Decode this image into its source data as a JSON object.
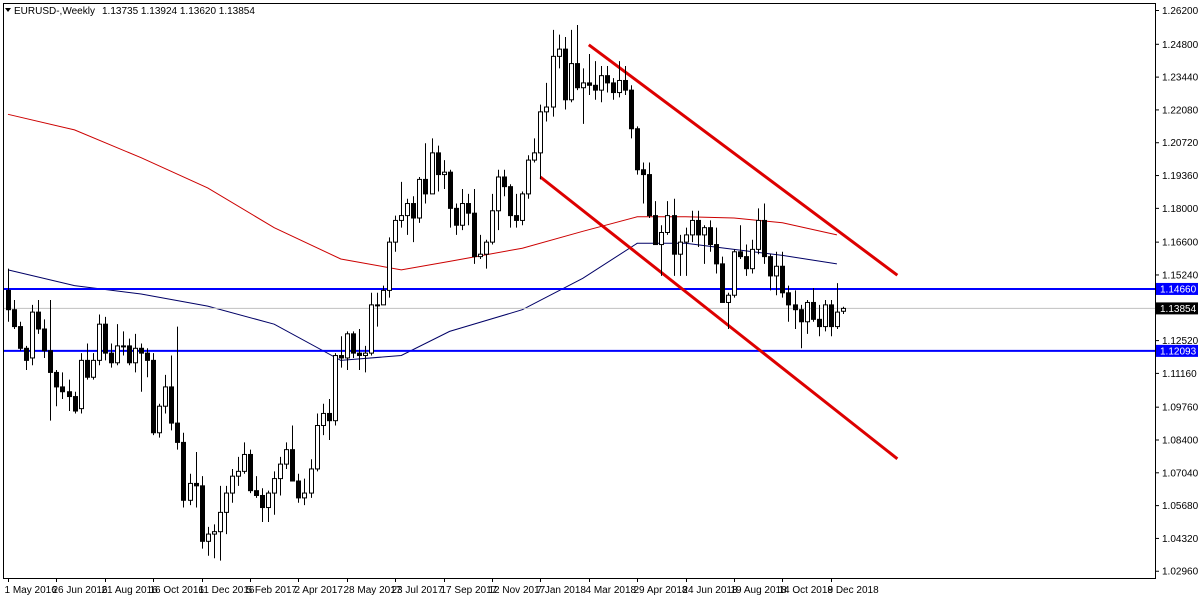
{
  "header": {
    "symbol": "EURUSD-,Weekly",
    "ohlc": "1.13735 1.13924 1.13620 1.13854"
  },
  "chart_data": {
    "type": "candlestick",
    "timeframe": "Weekly",
    "y_range": [
      1.0268,
      1.2647
    ],
    "y_ticks": [
      "1.26200",
      "1.24800",
      "1.23440",
      "1.22080",
      "1.20720",
      "1.19360",
      "1.18000",
      "1.16600",
      "1.15240",
      "1.13880",
      "1.12520",
      "1.11160",
      "1.09760",
      "1.08400",
      "1.07040",
      "1.05680",
      "1.04320",
      "1.02960"
    ],
    "x_tick_labels": [
      "1 May 2016",
      "26 Jun 2016",
      "21 Aug 2016",
      "16 Oct 2016",
      "11 Dec 2016",
      "5 Feb 2017",
      "2 Apr 2017",
      "28 May 2017",
      "23 Jul 2017",
      "17 Sep 2017",
      "12 Nov 2017",
      "7 Jan 2018",
      "4 Mar 2018",
      "29 Apr 2018",
      "24 Jun 2018",
      "19 Aug 2018",
      "14 Oct 2018",
      "9 Dec 2018"
    ],
    "current_price": "1.13854",
    "horizontal_levels": [
      {
        "value": "1.14660",
        "color": "#0000ff"
      },
      {
        "value": "1.12093",
        "color": "#0000ff"
      }
    ],
    "channel_lines": [
      {
        "from": [
          "2018-03-04",
          1.2478
        ],
        "to": [
          "2019-02-24",
          1.1523
        ],
        "color": "#dd0000"
      },
      {
        "from": [
          "2018-01-07",
          1.193
        ],
        "to": [
          "2019-02-24",
          1.0762
        ],
        "color": "#dd0000"
      }
    ],
    "moving_averages": [
      {
        "color": "#cc0000",
        "points": [
          [
            "2016-05-01",
            1.219
          ],
          [
            "2016-07-17",
            1.2125
          ],
          [
            "2016-10-02",
            1.201
          ],
          [
            "2016-12-18",
            1.1885
          ],
          [
            "2017-03-05",
            1.172
          ],
          [
            "2017-05-21",
            1.159
          ],
          [
            "2017-07-30",
            1.1545
          ],
          [
            "2017-09-24",
            1.158
          ],
          [
            "2017-12-17",
            1.1635
          ],
          [
            "2018-02-25",
            1.1705
          ],
          [
            "2018-04-29",
            1.1765
          ],
          [
            "2018-06-24",
            1.1765
          ],
          [
            "2018-08-19",
            1.176
          ],
          [
            "2018-10-14",
            1.174
          ],
          [
            "2018-12-16",
            1.169
          ]
        ]
      },
      {
        "color": "#000066",
        "points": [
          [
            "2016-05-01",
            1.1545
          ],
          [
            "2016-07-17",
            1.148
          ],
          [
            "2016-10-02",
            1.1445
          ],
          [
            "2016-12-18",
            1.1395
          ],
          [
            "2017-03-05",
            1.132
          ],
          [
            "2017-05-21",
            1.117
          ],
          [
            "2017-07-30",
            1.119
          ],
          [
            "2017-09-24",
            1.129
          ],
          [
            "2017-12-17",
            1.138
          ],
          [
            "2018-02-25",
            1.151
          ],
          [
            "2018-04-29",
            1.1655
          ],
          [
            "2018-06-24",
            1.1655
          ],
          [
            "2018-08-19",
            1.163
          ],
          [
            "2018-10-14",
            1.1605
          ],
          [
            "2018-12-16",
            1.157
          ]
        ]
      }
    ],
    "candles": [
      [
        "2016-05-01",
        1.146,
        1.155,
        1.133,
        1.138
      ],
      [
        "2016-05-08",
        1.138,
        1.142,
        1.13,
        1.131
      ],
      [
        "2016-05-15",
        1.131,
        1.133,
        1.121,
        1.122
      ],
      [
        "2016-05-22",
        1.122,
        1.123,
        1.113,
        1.117
      ],
      [
        "2016-05-29",
        1.118,
        1.14,
        1.115,
        1.137
      ],
      [
        "2016-06-05",
        1.137,
        1.142,
        1.128,
        1.13
      ],
      [
        "2016-06-12",
        1.13,
        1.134,
        1.118,
        1.121
      ],
      [
        "2016-06-19",
        1.121,
        1.142,
        1.092,
        1.112
      ],
      [
        "2016-06-26",
        1.112,
        1.113,
        1.098,
        1.106
      ],
      [
        "2016-07-03",
        1.106,
        1.112,
        1.101,
        1.104
      ],
      [
        "2016-07-10",
        1.104,
        1.109,
        1.096,
        1.102
      ],
      [
        "2016-07-17",
        1.102,
        1.104,
        1.095,
        1.096
      ],
      [
        "2016-07-24",
        1.097,
        1.12,
        1.095,
        1.117
      ],
      [
        "2016-07-31",
        1.117,
        1.124,
        1.109,
        1.11
      ],
      [
        "2016-08-07",
        1.11,
        1.12,
        1.109,
        1.117
      ],
      [
        "2016-08-14",
        1.117,
        1.136,
        1.115,
        1.132
      ],
      [
        "2016-08-21",
        1.132,
        1.135,
        1.117,
        1.12
      ],
      [
        "2016-08-28",
        1.12,
        1.124,
        1.114,
        1.116
      ],
      [
        "2016-09-04",
        1.116,
        1.132,
        1.115,
        1.123
      ],
      [
        "2016-09-11",
        1.123,
        1.129,
        1.119,
        1.123
      ],
      [
        "2016-09-18",
        1.123,
        1.126,
        1.115,
        1.116
      ],
      [
        "2016-09-25",
        1.116,
        1.128,
        1.112,
        1.122
      ],
      [
        "2016-10-02",
        1.122,
        1.124,
        1.104,
        1.12
      ],
      [
        "2016-10-09",
        1.12,
        1.122,
        1.11,
        1.117
      ],
      [
        "2016-10-16",
        1.117,
        1.12,
        1.086,
        1.087
      ],
      [
        "2016-10-23",
        1.087,
        1.099,
        1.085,
        1.098
      ],
      [
        "2016-10-30",
        1.098,
        1.111,
        1.095,
        1.106
      ],
      [
        "2016-11-06",
        1.106,
        1.119,
        1.088,
        1.091
      ],
      [
        "2016-11-13",
        1.091,
        1.131,
        1.08,
        1.083
      ],
      [
        "2016-11-20",
        1.083,
        1.087,
        1.056,
        1.059
      ],
      [
        "2016-11-27",
        1.059,
        1.07,
        1.057,
        1.066
      ],
      [
        "2016-12-04",
        1.066,
        1.079,
        1.056,
        1.065
      ],
      [
        "2016-12-11",
        1.065,
        1.069,
        1.039,
        1.042
      ],
      [
        "2016-12-18",
        1.042,
        1.048,
        1.036,
        1.045
      ],
      [
        "2016-12-25",
        1.045,
        1.049,
        1.035,
        1.046
      ],
      [
        "2017-01-01",
        1.046,
        1.065,
        1.034,
        1.054
      ],
      [
        "2017-01-08",
        1.054,
        1.065,
        1.045,
        1.062
      ],
      [
        "2017-01-15",
        1.062,
        1.072,
        1.058,
        1.069
      ],
      [
        "2017-01-22",
        1.069,
        1.077,
        1.065,
        1.071
      ],
      [
        "2017-01-29",
        1.071,
        1.083,
        1.07,
        1.078
      ],
      [
        "2017-02-05",
        1.078,
        1.08,
        1.062,
        1.063
      ],
      [
        "2017-02-12",
        1.063,
        1.069,
        1.06,
        1.061
      ],
      [
        "2017-02-19",
        1.061,
        1.064,
        1.05,
        1.056
      ],
      [
        "2017-02-26",
        1.056,
        1.063,
        1.05,
        1.062
      ],
      [
        "2017-03-05",
        1.062,
        1.071,
        1.053,
        1.068
      ],
      [
        "2017-03-12",
        1.068,
        1.077,
        1.061,
        1.074
      ],
      [
        "2017-03-19",
        1.074,
        1.083,
        1.072,
        1.08
      ],
      [
        "2017-03-26",
        1.08,
        1.09,
        1.067,
        1.067
      ],
      [
        "2017-04-02",
        1.067,
        1.07,
        1.058,
        1.06
      ],
      [
        "2017-04-09",
        1.06,
        1.068,
        1.057,
        1.062
      ],
      [
        "2017-04-16",
        1.062,
        1.076,
        1.06,
        1.072
      ],
      [
        "2017-04-23",
        1.072,
        1.095,
        1.071,
        1.09
      ],
      [
        "2017-04-30",
        1.09,
        1.099,
        1.086,
        1.095
      ],
      [
        "2017-05-07",
        1.095,
        1.101,
        1.084,
        1.092
      ],
      [
        "2017-05-14",
        1.092,
        1.12,
        1.09,
        1.119
      ],
      [
        "2017-05-21",
        1.119,
        1.127,
        1.114,
        1.118
      ],
      [
        "2017-05-28",
        1.118,
        1.129,
        1.113,
        1.128
      ],
      [
        "2017-06-04",
        1.128,
        1.129,
        1.118,
        1.12
      ],
      [
        "2017-06-11",
        1.12,
        1.13,
        1.113,
        1.119
      ],
      [
        "2017-06-18",
        1.119,
        1.123,
        1.112,
        1.12
      ],
      [
        "2017-06-25",
        1.12,
        1.145,
        1.119,
        1.14
      ],
      [
        "2017-07-02",
        1.14,
        1.145,
        1.131,
        1.14
      ],
      [
        "2017-07-09",
        1.14,
        1.148,
        1.14,
        1.146
      ],
      [
        "2017-07-16",
        1.146,
        1.168,
        1.143,
        1.166
      ],
      [
        "2017-07-23",
        1.166,
        1.177,
        1.162,
        1.175
      ],
      [
        "2017-07-30",
        1.175,
        1.191,
        1.172,
        1.177
      ],
      [
        "2017-08-06",
        1.177,
        1.184,
        1.169,
        1.182
      ],
      [
        "2017-08-13",
        1.182,
        1.185,
        1.166,
        1.176
      ],
      [
        "2017-08-20",
        1.176,
        1.193,
        1.174,
        1.192
      ],
      [
        "2017-08-27",
        1.192,
        1.207,
        1.182,
        1.186
      ],
      [
        "2017-09-03",
        1.186,
        1.209,
        1.186,
        1.203
      ],
      [
        "2017-09-10",
        1.203,
        1.206,
        1.187,
        1.194
      ],
      [
        "2017-09-17",
        1.194,
        1.2,
        1.188,
        1.195
      ],
      [
        "2017-09-24",
        1.195,
        1.196,
        1.172,
        1.18
      ],
      [
        "2017-10-01",
        1.18,
        1.182,
        1.169,
        1.173
      ],
      [
        "2017-10-08",
        1.173,
        1.188,
        1.171,
        1.182
      ],
      [
        "2017-10-15",
        1.182,
        1.186,
        1.173,
        1.178
      ],
      [
        "2017-10-22",
        1.178,
        1.188,
        1.157,
        1.16
      ],
      [
        "2017-10-29",
        1.16,
        1.169,
        1.159,
        1.161
      ],
      [
        "2017-11-05",
        1.161,
        1.167,
        1.155,
        1.166
      ],
      [
        "2017-11-12",
        1.166,
        1.186,
        1.165,
        1.179
      ],
      [
        "2017-11-19",
        1.179,
        1.196,
        1.171,
        1.193
      ],
      [
        "2017-11-26",
        1.193,
        1.196,
        1.185,
        1.189
      ],
      [
        "2017-12-03",
        1.189,
        1.19,
        1.172,
        1.177
      ],
      [
        "2017-12-10",
        1.177,
        1.186,
        1.172,
        1.175
      ],
      [
        "2017-12-17",
        1.175,
        1.187,
        1.173,
        1.186
      ],
      [
        "2017-12-24",
        1.186,
        1.202,
        1.184,
        1.2
      ],
      [
        "2017-12-31",
        1.2,
        1.209,
        1.199,
        1.203
      ],
      [
        "2018-01-07",
        1.203,
        1.223,
        1.192,
        1.22
      ],
      [
        "2018-01-14",
        1.22,
        1.232,
        1.216,
        1.222
      ],
      [
        "2018-01-21",
        1.222,
        1.254,
        1.218,
        1.243
      ],
      [
        "2018-01-28",
        1.243,
        1.252,
        1.238,
        1.246
      ],
      [
        "2018-02-04",
        1.246,
        1.251,
        1.221,
        1.225
      ],
      [
        "2018-02-11",
        1.225,
        1.254,
        1.224,
        1.24
      ],
      [
        "2018-02-18",
        1.24,
        1.256,
        1.229,
        1.23
      ],
      [
        "2018-02-25",
        1.23,
        1.238,
        1.215,
        1.232
      ],
      [
        "2018-03-04",
        1.232,
        1.244,
        1.227,
        1.231
      ],
      [
        "2018-03-11",
        1.231,
        1.241,
        1.225,
        1.229
      ],
      [
        "2018-03-18",
        1.229,
        1.239,
        1.224,
        1.235
      ],
      [
        "2018-03-25",
        1.235,
        1.239,
        1.228,
        1.232
      ],
      [
        "2018-04-01",
        1.232,
        1.234,
        1.225,
        1.228
      ],
      [
        "2018-04-08",
        1.228,
        1.241,
        1.226,
        1.233
      ],
      [
        "2018-04-15",
        1.233,
        1.239,
        1.227,
        1.229
      ],
      [
        "2018-04-22",
        1.229,
        1.231,
        1.209,
        1.213
      ],
      [
        "2018-04-29",
        1.213,
        1.214,
        1.194,
        1.196
      ],
      [
        "2018-05-06",
        1.196,
        1.199,
        1.182,
        1.194
      ],
      [
        "2018-05-13",
        1.194,
        1.199,
        1.176,
        1.177
      ],
      [
        "2018-05-20",
        1.177,
        1.183,
        1.165,
        1.165
      ],
      [
        "2018-05-27",
        1.165,
        1.173,
        1.152,
        1.17
      ],
      [
        "2018-06-03",
        1.17,
        1.183,
        1.169,
        1.177
      ],
      [
        "2018-06-10",
        1.177,
        1.184,
        1.152,
        1.161
      ],
      [
        "2018-06-17",
        1.161,
        1.169,
        1.152,
        1.166
      ],
      [
        "2018-06-24",
        1.166,
        1.172,
        1.152,
        1.169
      ],
      [
        "2018-07-01",
        1.169,
        1.179,
        1.166,
        1.175
      ],
      [
        "2018-07-08",
        1.175,
        1.179,
        1.164,
        1.169
      ],
      [
        "2018-07-15",
        1.169,
        1.173,
        1.157,
        1.172
      ],
      [
        "2018-07-22",
        1.172,
        1.175,
        1.162,
        1.165
      ],
      [
        "2018-07-29",
        1.165,
        1.172,
        1.153,
        1.157
      ],
      [
        "2018-08-05",
        1.157,
        1.16,
        1.142,
        1.141
      ],
      [
        "2018-08-12",
        1.141,
        1.145,
        1.13,
        1.144
      ],
      [
        "2018-08-19",
        1.144,
        1.163,
        1.143,
        1.162
      ],
      [
        "2018-08-26",
        1.162,
        1.173,
        1.159,
        1.16
      ],
      [
        "2018-09-02",
        1.16,
        1.165,
        1.152,
        1.155
      ],
      [
        "2018-09-09",
        1.155,
        1.167,
        1.153,
        1.163
      ],
      [
        "2018-09-16",
        1.163,
        1.18,
        1.161,
        1.175
      ],
      [
        "2018-09-23",
        1.175,
        1.182,
        1.157,
        1.16
      ],
      [
        "2018-09-30",
        1.16,
        1.161,
        1.146,
        1.152
      ],
      [
        "2018-10-07",
        1.152,
        1.162,
        1.144,
        1.156
      ],
      [
        "2018-10-14",
        1.156,
        1.162,
        1.143,
        1.145
      ],
      [
        "2018-10-21",
        1.145,
        1.148,
        1.133,
        1.14
      ],
      [
        "2018-10-28",
        1.14,
        1.146,
        1.13,
        1.138
      ],
      [
        "2018-11-04",
        1.138,
        1.14,
        1.122,
        1.133
      ],
      [
        "2018-11-11",
        1.133,
        1.142,
        1.128,
        1.141
      ],
      [
        "2018-11-18",
        1.141,
        1.147,
        1.133,
        1.134
      ],
      [
        "2018-11-25",
        1.134,
        1.14,
        1.127,
        1.131
      ],
      [
        "2018-12-02",
        1.131,
        1.142,
        1.129,
        1.14
      ],
      [
        "2018-12-09",
        1.14,
        1.142,
        1.127,
        1.131
      ],
      [
        "2018-12-16",
        1.131,
        1.149,
        1.13,
        1.137
      ],
      [
        "2018-12-23",
        1.13735,
        1.13924,
        1.1362,
        1.13854
      ]
    ]
  }
}
